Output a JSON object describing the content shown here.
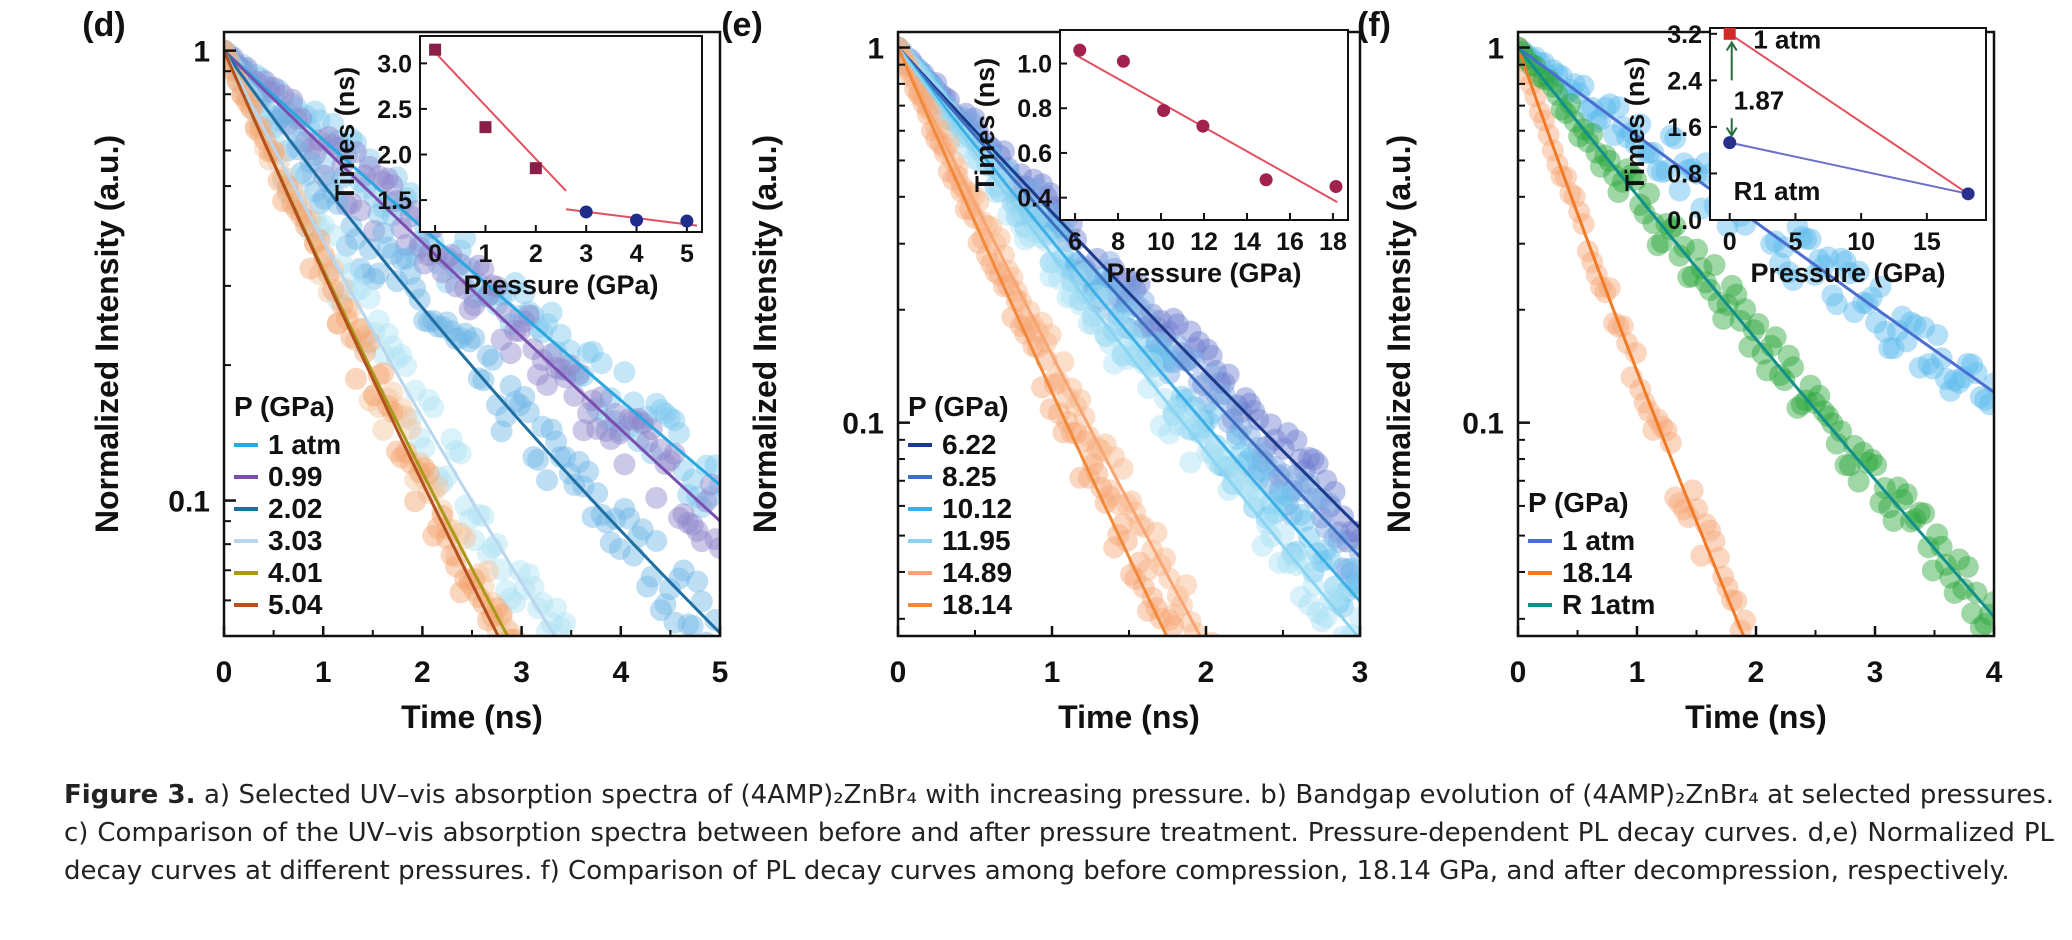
{
  "caption": {
    "label": "Figure 3.",
    "text": "a) Selected UV–vis absorption spectra of (4AMP)₂ZnBr₄ with increasing pressure. b) Bandgap evolution of (4AMP)₂ZnBr₄ at selected pressures. c) Comparison of the UV–vis absorption spectra between before and after pressure treatment. Pressure-dependent PL decay curves. d,e) Normalized PL decay curves at different pressures. f) Comparison of PL decay curves among before compression, 18.14 GPa, and after decompression, respectively."
  },
  "chart_data": [
    {
      "panel": "(d)",
      "type": "scatter",
      "xlabel": "Time (ns)",
      "ylabel": "Normalized Intensity (a.u.)",
      "xlim": [
        0,
        5
      ],
      "ylim": [
        0.05,
        1.1
      ],
      "yscale": "log",
      "x_ticks": [
        "0",
        "1",
        "2",
        "3",
        "4",
        "5"
      ],
      "y_ticks": [
        {
          "value": 1,
          "label": "1"
        },
        {
          "value": 0.1,
          "label": "0.1"
        }
      ],
      "legend_title": "P (GPa)",
      "legend_position": "lower-left",
      "series": [
        {
          "name": "1 atm",
          "color": "#29a8e0",
          "marker_color": "#7cc8ee",
          "tau": 1.9,
          "tau2": 1.9
        },
        {
          "name": "0.99",
          "color": "#7b4fb0",
          "marker_color": "#8f86cc",
          "tau": 1.75,
          "tau2": 1.75
        },
        {
          "name": "2.02",
          "color": "#1f6fa3",
          "marker_color": "#6fb6e6",
          "tau": 1.1,
          "tau2": 1.55
        },
        {
          "name": "3.03",
          "color": "#b9d6ef",
          "marker_color": "#aee3f5",
          "tau": 0.8,
          "tau2": 1.0
        },
        {
          "name": "4.01",
          "color": "#a89a18",
          "marker_color": "#f5c49b",
          "tau": 0.7,
          "tau2": 0.85
        },
        {
          "name": "5.04",
          "color": "#b5501f",
          "marker_color": "#f4a46e",
          "tau": 0.72,
          "tau2": 0.8
        }
      ],
      "inset": {
        "xlabel": "Pressure (GPa)",
        "ylabel": "Times (ns)",
        "xlim": [
          -0.3,
          5.3
        ],
        "ylim": [
          1.15,
          3.3
        ],
        "x_ticks": [
          0,
          1,
          2,
          3,
          4,
          5
        ],
        "y_ticks": [
          1.5,
          2.0,
          2.5,
          3.0
        ],
        "y_tick_labels": [
          "1.5",
          "2.0",
          "2.5",
          "3.0"
        ],
        "groups": [
          {
            "marker": "square",
            "color": "#8b1e48",
            "points": [
              [
                0,
                3.15
              ],
              [
                1,
                2.3
              ],
              [
                2,
                1.85
              ]
            ],
            "fit": [
              [
                0,
                3.12
              ],
              [
                2.6,
                1.6
              ]
            ]
          },
          {
            "marker": "circle",
            "color": "#1f2c8a",
            "points": [
              [
                3,
                1.37
              ],
              [
                4,
                1.28
              ],
              [
                5,
                1.27
              ]
            ],
            "fit": [
              [
                2.6,
                1.4
              ],
              [
                5.2,
                1.22
              ]
            ]
          }
        ]
      }
    },
    {
      "panel": "(e)",
      "type": "scatter",
      "xlabel": "Time (ns)",
      "ylabel": "Normalized Intensity (a.u.)",
      "xlim": [
        0,
        3
      ],
      "ylim": [
        0.027,
        1.1
      ],
      "yscale": "log",
      "x_ticks": [
        "0",
        "1",
        "2",
        "3"
      ],
      "y_ticks": [
        {
          "value": 1,
          "label": "1"
        },
        {
          "value": 0.1,
          "label": "0.1"
        }
      ],
      "legend_title": "P (GPa)",
      "legend_position": "lower-left",
      "series": [
        {
          "name": "6.22",
          "color": "#1c3a8a",
          "marker_color": "#6f7fd0",
          "tau": 0.85,
          "tau2": 0.85
        },
        {
          "name": "8.25",
          "color": "#3d6fc0",
          "marker_color": "#7aa6e3",
          "tau": 0.8,
          "tau2": 0.8
        },
        {
          "name": "10.12",
          "color": "#3cb0e5",
          "marker_color": "#69c3ee",
          "tau": 0.7,
          "tau2": 0.75
        },
        {
          "name": "11.95",
          "color": "#8ad4f2",
          "marker_color": "#a9e0f5",
          "tau": 0.65,
          "tau2": 0.7
        },
        {
          "name": "14.89",
          "color": "#f7a572",
          "marker_color": "#f8b98b",
          "tau": 0.45,
          "tau2": 0.45
        },
        {
          "name": "18.14",
          "color": "#f08a3a",
          "marker_color": "#f6a675",
          "tau": 0.4,
          "tau2": 0.4
        }
      ],
      "inset": {
        "xlabel": "Pressure (GPa)",
        "ylabel": "Times (ns)",
        "xlim": [
          5.3,
          18.7
        ],
        "ylim": [
          0.3,
          1.15
        ],
        "x_ticks": [
          6,
          8,
          10,
          12,
          14,
          16,
          18
        ],
        "y_ticks": [
          0.4,
          0.6,
          0.8,
          1.0
        ],
        "y_tick_labels": [
          "0.4",
          "0.6",
          "0.8",
          "1.0"
        ],
        "groups": [
          {
            "marker": "circle",
            "color": "#a3214f",
            "points": [
              [
                6.22,
                1.06
              ],
              [
                8.25,
                1.01
              ],
              [
                10.12,
                0.79
              ],
              [
                11.95,
                0.72
              ],
              [
                14.89,
                0.48
              ],
              [
                18.14,
                0.45
              ]
            ],
            "fit": [
              [
                6.0,
                1.04
              ],
              [
                18.2,
                0.38
              ]
            ]
          }
        ]
      }
    },
    {
      "panel": "(f)",
      "type": "scatter",
      "xlabel": "Time (ns)",
      "ylabel": "Normalized Intensity (a.u.)",
      "xlim": [
        0,
        4
      ],
      "ylim": [
        0.027,
        1.1
      ],
      "yscale": "log",
      "x_ticks": [
        "0",
        "1",
        "2",
        "3",
        "4"
      ],
      "y_ticks": [
        {
          "value": 1,
          "label": "1"
        },
        {
          "value": 0.1,
          "label": "0.1"
        }
      ],
      "legend_title": "P (GPa)",
      "legend_position": "lower-left",
      "series": [
        {
          "name": "1 atm",
          "color": "#4a6fd0",
          "marker_color": "#5bbbee",
          "tau": 1.6,
          "tau2": 1.6
        },
        {
          "name": "18.14",
          "color": "#f07a25",
          "marker_color": "#f6a675",
          "tau": 0.4,
          "tau2": 0.45
        },
        {
          "name": "R 1atm",
          "color": "#12908a",
          "marker_color": "#2aa63a",
          "tau": 0.95,
          "tau2": 0.95
        }
      ],
      "inset": {
        "xlabel": "Pressure (GPa)",
        "ylabel": "Times (ns)",
        "xlim": [
          -1.5,
          19.5
        ],
        "ylim": [
          0.0,
          3.3
        ],
        "x_ticks": [
          0,
          5,
          10,
          15
        ],
        "y_ticks": [
          0.0,
          0.8,
          1.6,
          2.4,
          3.2
        ],
        "y_tick_labels": [
          "0.0",
          "0.8",
          "1.6",
          "2.4",
          "3.2"
        ],
        "groups": [
          {
            "marker": "square",
            "color": "#d42a2a",
            "points": [
              [
                0,
                3.2
              ]
            ],
            "fit": [
              [
                0,
                3.2
              ],
              [
                18.14,
                0.45
              ]
            ]
          },
          {
            "marker": "circle",
            "color": "#2a2f8e",
            "points": [
              [
                0,
                1.33
              ],
              [
                18.14,
                0.45
              ]
            ],
            "fit": [
              [
                0,
                1.33
              ],
              [
                18.14,
                0.45
              ]
            ]
          }
        ],
        "annotations": [
          {
            "text": "1 atm",
            "x": 1.8,
            "y": 3.1
          },
          {
            "text": "1.87",
            "x": 0.3,
            "y": 2.05
          },
          {
            "text": "R1 atm",
            "x": 0.3,
            "y": 0.5
          }
        ]
      }
    }
  ]
}
